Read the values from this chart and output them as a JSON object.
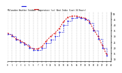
{
  "title": "Milwaukee Weather Outdoor Temperature (vs) Heat Index (Last 24 Hours)",
  "background_color": "#ffffff",
  "plot_bg_color": "#ffffff",
  "grid_color": "#888888",
  "line_temp_color": "#0000dd",
  "line_heat_color": "#dd0000",
  "ylim": [
    8,
    52
  ],
  "xlim": [
    0,
    24
  ],
  "yticks": [
    10,
    15,
    20,
    25,
    30,
    35,
    40,
    45,
    50
  ],
  "ytick_labels": [
    "10",
    "15",
    "20",
    "25",
    "30",
    "35",
    "40",
    "45",
    "50"
  ],
  "n_hours": 24,
  "temp": [
    32,
    30,
    27,
    25,
    23,
    20,
    18,
    18,
    20,
    24,
    27,
    30,
    34,
    40,
    44,
    46,
    47,
    46,
    45,
    42,
    35,
    28,
    20,
    13
  ],
  "heat": [
    33,
    31,
    28,
    26,
    24,
    21,
    19,
    19,
    21,
    26,
    30,
    33,
    37,
    43,
    47,
    48,
    48,
    47,
    46,
    43,
    36,
    30,
    22,
    14
  ]
}
